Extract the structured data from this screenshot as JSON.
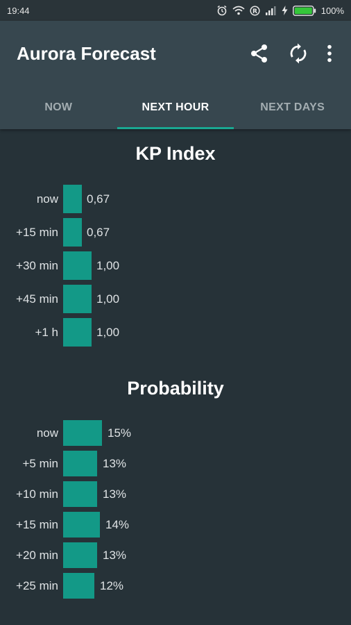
{
  "status_bar": {
    "time": "19:44",
    "battery": "100%",
    "icons": [
      "alarm-icon",
      "wifi-icon",
      "roaming-icon",
      "signal-icon",
      "charging-icon",
      "battery-icon"
    ]
  },
  "app_bar": {
    "title": "Aurora Forecast",
    "actions": [
      "share-icon",
      "refresh-icon",
      "more-vert-icon"
    ]
  },
  "tabs": [
    {
      "label": "NOW",
      "active": false
    },
    {
      "label": "NEXT HOUR",
      "active": true
    },
    {
      "label": "NEXT DAYS",
      "active": false
    }
  ],
  "colors": {
    "accent": "#1aa892",
    "bar": "#139987",
    "background": "#263238",
    "app_bar": "#37474f"
  },
  "chart_data": [
    {
      "type": "bar",
      "orientation": "horizontal",
      "title": "KP Index",
      "categories": [
        "now",
        "+15 min",
        "+30 min",
        "+45 min",
        "+1 h"
      ],
      "values": [
        0.67,
        0.67,
        1.0,
        1.0,
        1.0
      ],
      "value_labels": [
        "0,67",
        "0,67",
        "1,00",
        "1,00",
        "1,00"
      ]
    },
    {
      "type": "bar",
      "orientation": "horizontal",
      "title": "Probability",
      "categories": [
        "now",
        "+5 min",
        "+10 min",
        "+15 min",
        "+20 min",
        "+25 min"
      ],
      "values": [
        15,
        13,
        13,
        14,
        13,
        12
      ],
      "value_labels": [
        "15%",
        "13%",
        "13%",
        "14%",
        "13%",
        "12%"
      ]
    }
  ]
}
